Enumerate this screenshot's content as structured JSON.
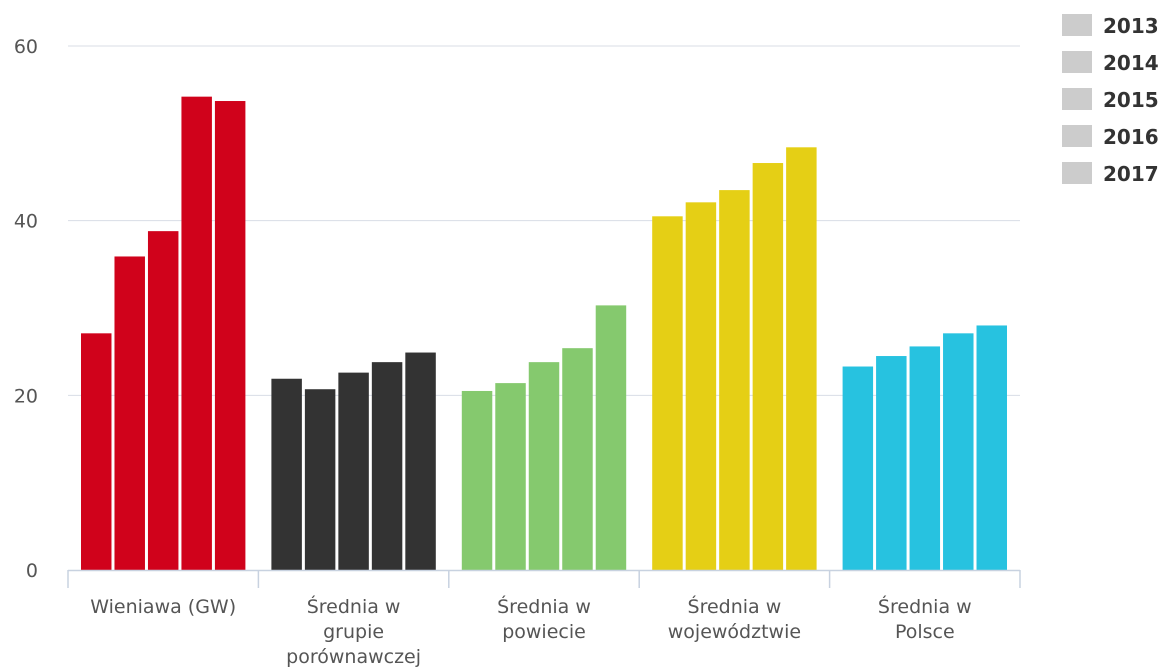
{
  "chart_data": {
    "type": "bar",
    "categories": [
      [
        "Wieniawa (GW)"
      ],
      [
        "Średnia w",
        "grupie",
        "porównawczej"
      ],
      [
        "Średnia w",
        "powiecie"
      ],
      [
        "Średnia w",
        "województwie"
      ],
      [
        "Średnia w",
        "Polsce"
      ]
    ],
    "category_colors": [
      "#d0021b",
      "#333333",
      "#85c96e",
      "#e5cf15",
      "#27c2e0"
    ],
    "series": [
      {
        "name": "2013",
        "values": [
          27.1,
          21.9,
          20.5,
          40.5,
          23.3
        ]
      },
      {
        "name": "2014",
        "values": [
          35.9,
          20.7,
          21.4,
          42.1,
          24.5
        ]
      },
      {
        "name": "2015",
        "values": [
          38.8,
          22.6,
          23.8,
          43.5,
          25.6
        ]
      },
      {
        "name": "2016",
        "values": [
          54.2,
          23.8,
          25.4,
          46.6,
          27.1
        ]
      },
      {
        "name": "2017",
        "values": [
          53.7,
          24.9,
          30.3,
          48.4,
          28.0
        ]
      }
    ],
    "legend_swatch_color": "#cccccc",
    "yticks": [
      0,
      20,
      40,
      60
    ],
    "ylim": [
      0,
      60
    ],
    "grid": true,
    "legend_position": "top-right",
    "title": "",
    "xlabel": "",
    "ylabel": ""
  }
}
